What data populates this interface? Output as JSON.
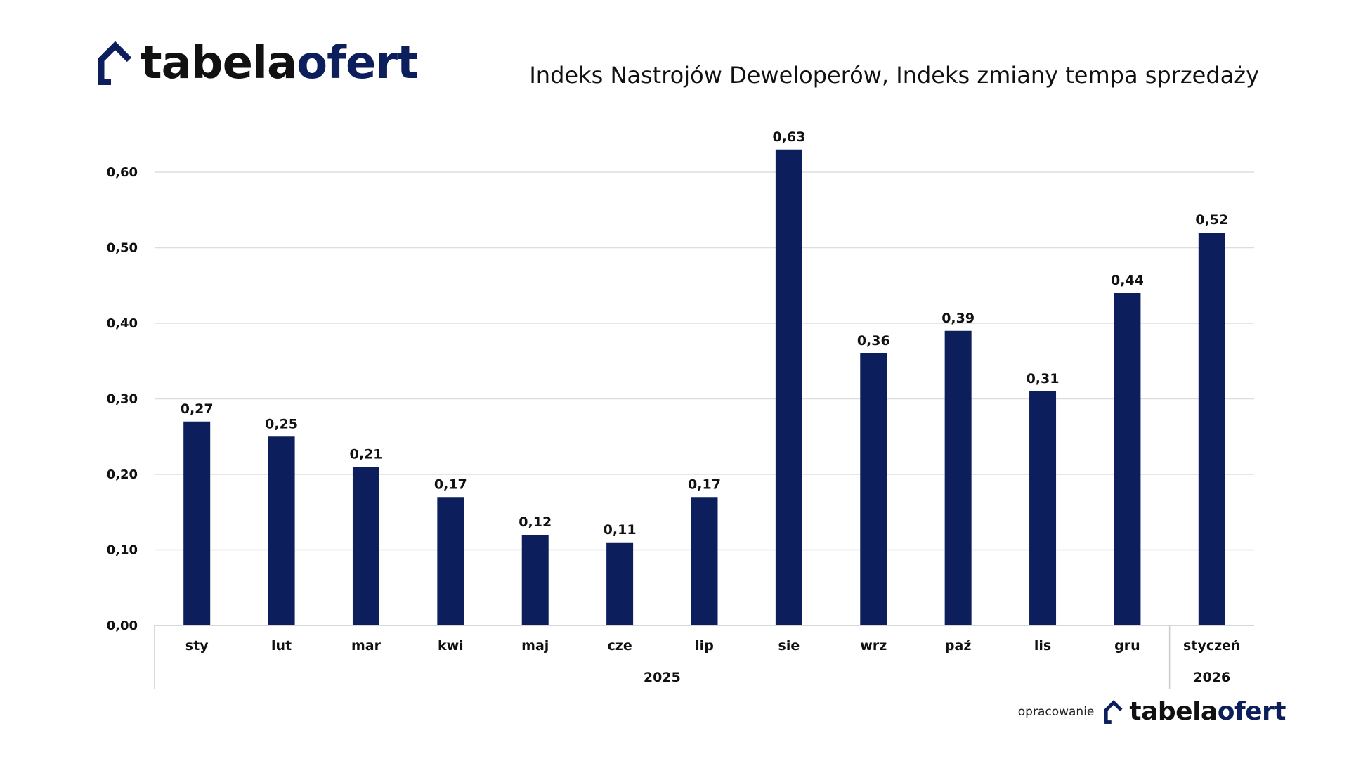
{
  "logo": {
    "part1": "tabela",
    "part2": "ofert",
    "icon": "house-outline-icon"
  },
  "title": "Indeks Nastrojów Deweloperów, Indeks zmiany tempa sprzedaży",
  "footer": {
    "prefix": "opracowanie",
    "part1": "tabela",
    "part2": "ofert"
  },
  "colors": {
    "bar": "#0c1f5c",
    "logo_dark": "#111111",
    "logo_accent": "#0c1f5c",
    "grid": "#dddddd"
  },
  "chart_data": {
    "type": "bar",
    "title": "Indeks Nastrojów Deweloperów, Indeks zmiany tempa sprzedaży",
    "categories": [
      "sty",
      "lut",
      "mar",
      "kwi",
      "maj",
      "cze",
      "lip",
      "sie",
      "wrz",
      "paź",
      "lis",
      "gru",
      "styczeń"
    ],
    "values": [
      0.27,
      0.25,
      0.21,
      0.17,
      0.12,
      0.11,
      0.17,
      0.63,
      0.36,
      0.39,
      0.31,
      0.44,
      0.52
    ],
    "value_labels": [
      "0,27",
      "0,25",
      "0,21",
      "0,17",
      "0,12",
      "0,11",
      "0,17",
      "0,63",
      "0,36",
      "0,39",
      "0,31",
      "0,44",
      "0,52"
    ],
    "groups": [
      {
        "label": "2025",
        "start": 0,
        "end": 11
      },
      {
        "label": "2026",
        "start": 12,
        "end": 12
      }
    ],
    "yticks": [
      0.0,
      0.1,
      0.2,
      0.3,
      0.4,
      0.5,
      0.6
    ],
    "ytick_labels": [
      "0,00",
      "0,10",
      "0,20",
      "0,30",
      "0,40",
      "0,50",
      "0,60"
    ],
    "ylim": [
      0,
      0.65
    ],
    "grid": true,
    "legend": "none"
  }
}
